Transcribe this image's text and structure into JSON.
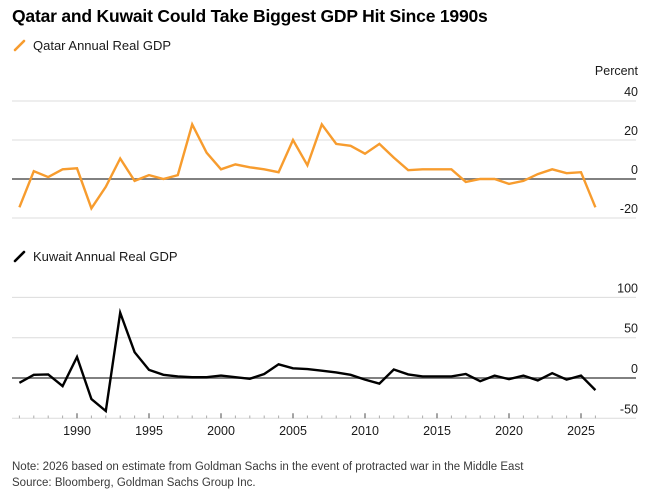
{
  "title": "Qatar and Kuwait Could Take Biggest GDP Hit Since 1990s",
  "y_axis_unit": "Percent",
  "note": "Note: 2026 based on estimate from Goldman Sachs in the event of protracted war in the Middle East",
  "source": "Source: Bloomberg, Goldman Sachs Group Inc.",
  "colors": {
    "qatar_line": "#F79C2E",
    "kuwait_line": "#000000",
    "gridline": "#DCDCDC",
    "zero_line": "#6F6F6F",
    "major_tick": "#4A4A4A",
    "minor_tick": "#ABABAB"
  },
  "x_axis": {
    "labeled_years": [
      1990,
      1995,
      2000,
      2005,
      2010,
      2015,
      2020,
      2025
    ],
    "tick_every_year": true,
    "first_year": 1986,
    "last_year": 2026
  },
  "chart_data": [
    {
      "type": "line",
      "legend": "Qatar Annual Real GDP",
      "color": "#F79C2E",
      "ylabel": "Percent",
      "yticks": [
        40,
        20,
        0,
        -20
      ],
      "ylim": [
        -22,
        42
      ],
      "grid": true,
      "legend_position": "top-left",
      "x": [
        1986,
        1987,
        1988,
        1989,
        1990,
        1991,
        1992,
        1993,
        1994,
        1995,
        1996,
        1997,
        1998,
        1999,
        2000,
        2001,
        2002,
        2003,
        2004,
        2005,
        2006,
        2007,
        2008,
        2009,
        2010,
        2011,
        2012,
        2013,
        2014,
        2015,
        2016,
        2017,
        2018,
        2019,
        2020,
        2021,
        2022,
        2023,
        2024,
        2025,
        2026
      ],
      "values": [
        -14.5,
        4,
        1,
        5,
        5.5,
        -15,
        -4,
        10.5,
        -1,
        2,
        0,
        2,
        28,
        13.5,
        5,
        7.5,
        6,
        5,
        3.5,
        20,
        7,
        28,
        18,
        17,
        13,
        18,
        11,
        4.5,
        5,
        5,
        5,
        -1.5,
        0,
        0,
        -2.5,
        -1,
        2.5,
        5,
        3,
        3.5,
        -14.5
      ]
    },
    {
      "type": "line",
      "legend": "Kuwait Annual Real GDP",
      "color": "#000000",
      "ylabel": "Percent",
      "yticks": [
        100,
        50,
        0,
        -50
      ],
      "ylim": [
        -55,
        105
      ],
      "grid": true,
      "legend_position": "top-left",
      "x": [
        1986,
        1987,
        1988,
        1989,
        1990,
        1991,
        1992,
        1993,
        1994,
        1995,
        1996,
        1997,
        1998,
        1999,
        2000,
        2001,
        2002,
        2003,
        2004,
        2005,
        2006,
        2007,
        2008,
        2009,
        2010,
        2011,
        2012,
        2013,
        2014,
        2015,
        2016,
        2017,
        2018,
        2019,
        2020,
        2021,
        2022,
        2023,
        2024,
        2025,
        2026
      ],
      "values": [
        -6,
        4,
        4.5,
        -10,
        26,
        -26,
        -41,
        81,
        32,
        10,
        4,
        2,
        1,
        1,
        3,
        1,
        -1,
        5,
        17,
        12,
        11,
        9,
        7,
        4,
        -2,
        -7,
        10.5,
        4.5,
        2,
        2,
        2,
        5,
        -4,
        3,
        -1.5,
        3,
        -3,
        6,
        -2,
        3,
        -15
      ]
    }
  ]
}
